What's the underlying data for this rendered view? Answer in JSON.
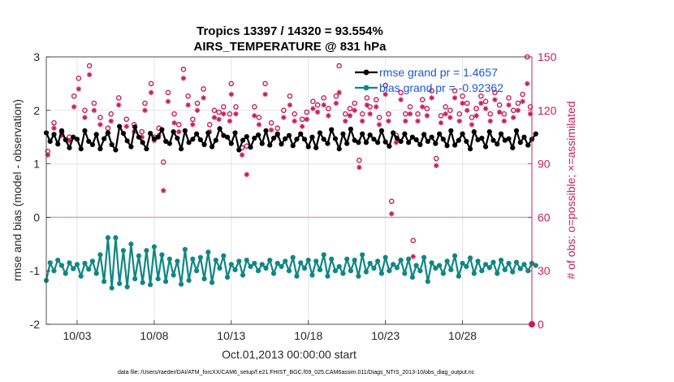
{
  "chart_data": {
    "type": "line",
    "title": "Tropics 13397 / 14320 = 93.554%",
    "subtitle": "AIRS_TEMPERATURE @ 831 hPa",
    "xlabel": "Oct.01,2013 00:00:00 start",
    "ylabel": "rmse and bias (model - observation)",
    "ylabel_right": "# of obs: o=possible; ×=assimilated",
    "footnote": "data file: /Users/raeder/DAI/ATM_forcXX/CAM6_setup/f.e21.FHIST_BGC.f09_025.CAM6assim.011/Diags_NTrS_2013-10/obs_diag_output.nc",
    "xlim": [
      1,
      32.5
    ],
    "ylim": [
      -2,
      3
    ],
    "ylim_right": [
      0,
      150
    ],
    "x_tick_values": [
      3,
      8,
      13,
      18,
      23,
      28
    ],
    "x_tick_labels": [
      "10/03",
      "10/08",
      "10/13",
      "10/18",
      "10/23",
      "10/28"
    ],
    "y_tick_values": [
      -2,
      -1,
      0,
      1,
      2,
      3
    ],
    "y_tick_labels": [
      "-2",
      "-1",
      "0",
      "1",
      "2",
      "3"
    ],
    "y_right_tick_values": [
      0,
      30,
      60,
      90,
      120,
      150
    ],
    "y_right_tick_labels": [
      "0",
      "30",
      "60",
      "90",
      "120",
      "150"
    ],
    "grid": true,
    "zero_line": 0,
    "legend_position": "top-right",
    "series": [
      {
        "name": "rmse grand pr = 1.4657",
        "axis": "left",
        "color": "#000000",
        "x_start": 1.0,
        "x_step": 0.25,
        "values": [
          1.58,
          1.42,
          1.55,
          1.37,
          1.62,
          1.45,
          1.3,
          1.5,
          1.46,
          1.28,
          1.62,
          1.42,
          1.36,
          1.55,
          1.28,
          1.47,
          1.58,
          1.36,
          1.26,
          1.7,
          1.57,
          1.43,
          1.32,
          1.69,
          1.5,
          1.4,
          1.28,
          1.57,
          1.47,
          1.5,
          1.64,
          1.42,
          1.38,
          1.6,
          1.48,
          1.28,
          1.62,
          1.4,
          1.46,
          1.56,
          1.45,
          1.36,
          1.58,
          1.32,
          1.44,
          1.66,
          1.53,
          1.5,
          1.38,
          1.58,
          1.26,
          1.44,
          1.51,
          1.31,
          1.48,
          1.54,
          1.38,
          1.62,
          1.35,
          1.48,
          1.56,
          1.37,
          1.47,
          1.53,
          1.34,
          1.46,
          1.56,
          1.46,
          1.32,
          1.5,
          1.3,
          1.58,
          1.46,
          1.38,
          1.64,
          1.47,
          1.28,
          1.56,
          1.38,
          1.65,
          1.44,
          1.4,
          1.56,
          1.4,
          1.54,
          1.46,
          1.4,
          1.62,
          1.41,
          1.33,
          1.58,
          1.48,
          1.42,
          1.56,
          1.4,
          1.5,
          1.45,
          1.36,
          1.55,
          1.42,
          1.5,
          1.38,
          1.56,
          1.46,
          1.34,
          1.62,
          1.35,
          1.44,
          1.56,
          1.42,
          1.28,
          1.6,
          1.45,
          1.48,
          1.32,
          1.6,
          1.44,
          1.37,
          1.56,
          1.44,
          1.47,
          1.3,
          1.62,
          1.4,
          1.5,
          1.35,
          1.46,
          1.56
        ]
      },
      {
        "name": "bias grand pr = -0.92362",
        "axis": "left",
        "color": "#0f8784",
        "x_start": 1.0,
        "x_step": 0.25,
        "values": [
          -1.18,
          -0.85,
          -1.0,
          -0.8,
          -0.9,
          -1.05,
          -0.85,
          -0.96,
          -0.88,
          -1.1,
          -0.86,
          -0.97,
          -0.82,
          -1.05,
          -0.7,
          -1.2,
          -0.38,
          -1.32,
          -0.38,
          -1.24,
          -0.62,
          -1.3,
          -0.5,
          -1.15,
          -0.72,
          -1.22,
          -0.62,
          -1.26,
          -0.55,
          -1.15,
          -0.7,
          -1.2,
          -0.78,
          -1.08,
          -0.82,
          -1.25,
          -0.6,
          -1.18,
          -0.78,
          -1.0,
          -0.75,
          -1.15,
          -0.65,
          -1.22,
          -0.8,
          -0.95,
          -0.72,
          -1.12,
          -0.88,
          -0.98,
          -0.82,
          -1.08,
          -0.8,
          -0.92,
          -0.86,
          -1.0,
          -0.88,
          -0.95,
          -0.8,
          -1.05,
          -0.86,
          -0.92,
          -0.82,
          -1.0,
          -0.75,
          -1.1,
          -0.85,
          -0.95,
          -0.8,
          -1.08,
          -0.82,
          -0.98,
          -0.7,
          -1.1,
          -0.78,
          -1.0,
          -0.92,
          -1.05,
          -0.78,
          -1.0,
          -0.8,
          -1.1,
          -0.7,
          -1.02,
          -0.86,
          -0.95,
          -0.82,
          -1.05,
          -0.75,
          -1.0,
          -0.88,
          -0.94,
          -0.8,
          -1.05,
          -0.78,
          -1.12,
          -0.9,
          -1.0,
          -0.75,
          -1.2,
          -0.85,
          -0.95,
          -0.9,
          -1.05,
          -0.82,
          -0.98,
          -0.72,
          -1.1,
          -0.86,
          -0.92,
          -0.76,
          -1.05,
          -0.82,
          -1.0,
          -0.88,
          -0.94,
          -0.84,
          -1.05,
          -0.8,
          -0.98,
          -0.86,
          -1.02,
          -0.84,
          -0.96,
          -0.88,
          -1.0,
          -0.86,
          -0.9
        ]
      }
    ],
    "observations": {
      "axis": "right",
      "color": "#c81e5a",
      "possible": [
        [
          1.1,
          97
        ],
        [
          1.5,
          113
        ],
        [
          2.0,
          108
        ],
        [
          2.5,
          105
        ],
        [
          2.8,
          128
        ],
        [
          3.1,
          138
        ],
        [
          3.5,
          120
        ],
        [
          3.8,
          145
        ],
        [
          4.1,
          124
        ],
        [
          4.5,
          116
        ],
        [
          5.0,
          110
        ],
        [
          5.2,
          118
        ],
        [
          5.7,
          127
        ],
        [
          6.2,
          115
        ],
        [
          6.7,
          112
        ],
        [
          7.2,
          108
        ],
        [
          7.4,
          124
        ],
        [
          7.8,
          135
        ],
        [
          8.0,
          105
        ],
        [
          8.3,
          110
        ],
        [
          8.6,
          91
        ],
        [
          8.9,
          130
        ],
        [
          9.3,
          118
        ],
        [
          9.6,
          112
        ],
        [
          9.9,
          143
        ],
        [
          10.2,
          128
        ],
        [
          10.5,
          115
        ],
        [
          10.8,
          124
        ],
        [
          11.2,
          132
        ],
        [
          11.6,
          112
        ],
        [
          11.9,
          120
        ],
        [
          12.2,
          119
        ],
        [
          12.5,
          122
        ],
        [
          12.9,
          118
        ],
        [
          13.0,
          135
        ],
        [
          13.3,
          122
        ],
        [
          13.7,
          99
        ],
        [
          14.0,
          100
        ],
        [
          14.5,
          122
        ],
        [
          14.8,
          116
        ],
        [
          15.2,
          135
        ],
        [
          15.6,
          113
        ],
        [
          16.0,
          110
        ],
        [
          16.4,
          120
        ],
        [
          16.8,
          128
        ],
        [
          17.1,
          118
        ],
        [
          17.6,
          115
        ],
        [
          17.9,
          119
        ],
        [
          18.3,
          125
        ],
        [
          18.6,
          123
        ],
        [
          19.0,
          127
        ],
        [
          19.3,
          121
        ],
        [
          19.8,
          128
        ],
        [
          20.0,
          145
        ],
        [
          20.4,
          118
        ],
        [
          20.7,
          121
        ],
        [
          21.0,
          124
        ],
        [
          21.3,
          92
        ],
        [
          21.5,
          118
        ],
        [
          21.8,
          127
        ],
        [
          22.0,
          122
        ],
        [
          22.4,
          126
        ],
        [
          22.6,
          116
        ],
        [
          23.0,
          134
        ],
        [
          23.2,
          118
        ],
        [
          23.4,
          69
        ],
        [
          23.7,
          106
        ],
        [
          24.0,
          130
        ],
        [
          24.3,
          118
        ],
        [
          24.6,
          122
        ],
        [
          24.8,
          47
        ],
        [
          25.1,
          118
        ],
        [
          25.4,
          126
        ],
        [
          25.7,
          121
        ],
        [
          26.0,
          131
        ],
        [
          26.3,
          93
        ],
        [
          26.6,
          117
        ],
        [
          26.9,
          122
        ],
        [
          27.2,
          120
        ],
        [
          27.5,
          131
        ],
        [
          27.8,
          118
        ],
        [
          28.0,
          128
        ],
        [
          28.3,
          124
        ],
        [
          28.6,
          116
        ],
        [
          28.9,
          121
        ],
        [
          29.2,
          128
        ],
        [
          29.5,
          125
        ],
        [
          29.8,
          118
        ],
        [
          30.1,
          130
        ],
        [
          30.4,
          123
        ],
        [
          30.7,
          118
        ],
        [
          31.0,
          127
        ],
        [
          31.3,
          120
        ],
        [
          31.6,
          124
        ],
        [
          31.9,
          129
        ],
        [
          32.2,
          150
        ],
        [
          32.4,
          122
        ]
      ],
      "assimilated": [
        [
          1.1,
          95
        ],
        [
          1.5,
          110
        ],
        [
          2.0,
          106
        ],
        [
          2.5,
          103
        ],
        [
          2.8,
          122
        ],
        [
          3.1,
          132
        ],
        [
          3.5,
          116
        ],
        [
          3.8,
          140
        ],
        [
          4.1,
          120
        ],
        [
          4.5,
          112
        ],
        [
          5.0,
          107
        ],
        [
          5.2,
          114
        ],
        [
          5.7,
          123
        ],
        [
          6.2,
          111
        ],
        [
          6.7,
          108
        ],
        [
          7.2,
          105
        ],
        [
          7.4,
          120
        ],
        [
          7.8,
          130
        ],
        [
          8.0,
          103
        ],
        [
          8.3,
          106
        ],
        [
          8.6,
          75
        ],
        [
          8.9,
          125
        ],
        [
          9.3,
          113
        ],
        [
          9.6,
          108
        ],
        [
          9.9,
          138
        ],
        [
          10.2,
          123
        ],
        [
          10.5,
          112
        ],
        [
          10.8,
          120
        ],
        [
          11.2,
          127
        ],
        [
          11.6,
          108
        ],
        [
          11.9,
          116
        ],
        [
          12.2,
          115
        ],
        [
          12.5,
          118
        ],
        [
          12.9,
          114
        ],
        [
          13.0,
          129
        ],
        [
          13.3,
          118
        ],
        [
          13.7,
          95
        ],
        [
          14.0,
          84
        ],
        [
          14.5,
          117
        ],
        [
          14.8,
          112
        ],
        [
          15.2,
          129
        ],
        [
          15.6,
          109
        ],
        [
          16.0,
          106
        ],
        [
          16.4,
          116
        ],
        [
          16.8,
          123
        ],
        [
          17.1,
          114
        ],
        [
          17.6,
          111
        ],
        [
          17.9,
          115
        ],
        [
          18.3,
          121
        ],
        [
          18.6,
          119
        ],
        [
          19.0,
          123
        ],
        [
          19.3,
          117
        ],
        [
          19.8,
          124
        ],
        [
          20.0,
          130
        ],
        [
          20.4,
          114
        ],
        [
          20.7,
          117
        ],
        [
          21.0,
          120
        ],
        [
          21.3,
          88
        ],
        [
          21.5,
          114
        ],
        [
          21.8,
          123
        ],
        [
          22.0,
          118
        ],
        [
          22.4,
          122
        ],
        [
          22.6,
          112
        ],
        [
          23.0,
          129
        ],
        [
          23.2,
          114
        ],
        [
          23.4,
          62
        ],
        [
          23.7,
          102
        ],
        [
          24.0,
          126
        ],
        [
          24.3,
          114
        ],
        [
          24.6,
          118
        ],
        [
          24.8,
          38
        ],
        [
          25.1,
          114
        ],
        [
          25.4,
          122
        ],
        [
          25.7,
          117
        ],
        [
          26.0,
          127
        ],
        [
          26.3,
          89
        ],
        [
          26.6,
          113
        ],
        [
          26.9,
          118
        ],
        [
          27.2,
          116
        ],
        [
          27.5,
          127
        ],
        [
          27.8,
          114
        ],
        [
          28.0,
          124
        ],
        [
          28.3,
          120
        ],
        [
          28.6,
          112
        ],
        [
          28.9,
          117
        ],
        [
          29.2,
          124
        ],
        [
          29.5,
          121
        ],
        [
          29.8,
          114
        ],
        [
          30.1,
          126
        ],
        [
          30.4,
          119
        ],
        [
          30.7,
          114
        ],
        [
          31.0,
          123
        ],
        [
          31.3,
          116
        ],
        [
          31.6,
          120
        ],
        [
          31.9,
          125
        ],
        [
          32.2,
          135
        ],
        [
          32.4,
          118
        ]
      ],
      "end_marker": [
        32.5,
        0
      ]
    }
  }
}
